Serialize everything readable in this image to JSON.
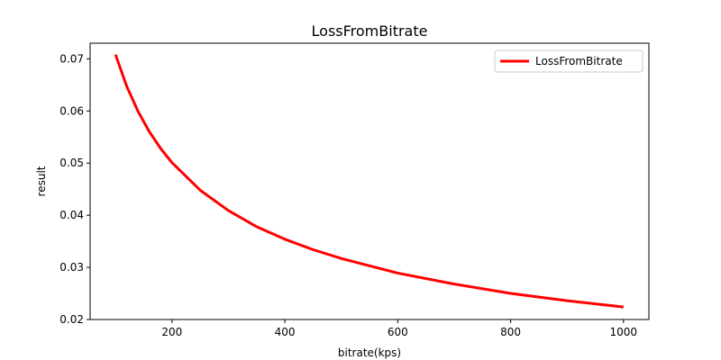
{
  "chart_data": {
    "type": "line",
    "title": "LossFromBitrate",
    "xlabel": "bitrate(kps)",
    "ylabel": "result",
    "xlim": [
      55,
      1045
    ],
    "ylim": [
      0.02,
      0.073
    ],
    "xticks": [
      200,
      400,
      600,
      800,
      1000
    ],
    "yticks": [
      0.02,
      0.03,
      0.04,
      0.05,
      0.06,
      0.07
    ],
    "grid": false,
    "legend": "top-right",
    "series": [
      {
        "name": "LossFromBitrate",
        "color": "#ff0000",
        "x": [
          100,
          120,
          140,
          160,
          180,
          200,
          250,
          300,
          350,
          400,
          450,
          500,
          600,
          700,
          800,
          900,
          1000
        ],
        "y": [
          0.0708,
          0.0647,
          0.0599,
          0.056,
          0.0528,
          0.0501,
          0.0448,
          0.0409,
          0.0378,
          0.0354,
          0.0334,
          0.0317,
          0.0289,
          0.0268,
          0.025,
          0.0236,
          0.0224
        ]
      }
    ]
  }
}
